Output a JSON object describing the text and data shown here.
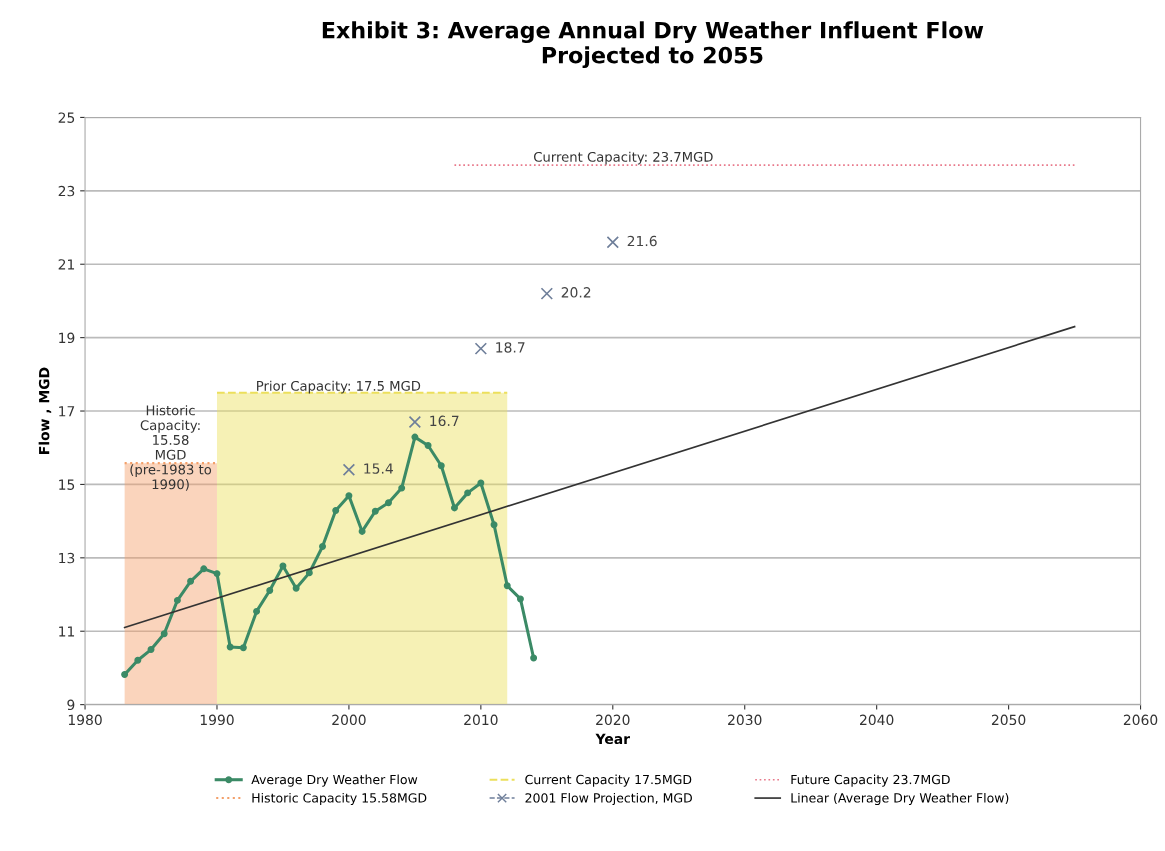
{
  "chart_data": {
    "type": "line",
    "title": "Exhibit 3: Average Annual Dry Weather Influent Flow\nProjected to 2055",
    "xlabel": "Year",
    "ylabel": "Flow , MGD",
    "xlim": [
      1980,
      2060
    ],
    "xticks": [
      1980,
      1990,
      2000,
      2010,
      2020,
      2030,
      2040,
      2050,
      2060
    ],
    "ylim": [
      9,
      25
    ],
    "yticks": [
      9,
      11,
      13,
      15,
      17,
      19,
      21,
      23,
      25
    ],
    "grid": "y",
    "legend": "bottom",
    "series": [
      {
        "name": "Average Dry Weather Flow",
        "color": "#3b8a66",
        "marker": "circle",
        "line_style": "solid",
        "x": [
          1983,
          1984,
          1985,
          1986,
          1987,
          1988,
          1989,
          1990,
          1991,
          1992,
          1993,
          1994,
          1995,
          1996,
          1997,
          1998,
          1999,
          2000,
          2001,
          2002,
          2003,
          2004,
          2005,
          2006,
          2007,
          2008,
          2009,
          2010,
          2011,
          2012,
          2013,
          2014
        ],
        "values": [
          9.82,
          10.21,
          10.5,
          10.93,
          11.84,
          12.36,
          12.7,
          12.57,
          10.57,
          10.55,
          11.54,
          12.11,
          12.78,
          12.17,
          12.59,
          13.31,
          14.29,
          14.69,
          13.72,
          14.27,
          14.5,
          14.9,
          16.29,
          16.06,
          15.51,
          14.36,
          14.77,
          15.04,
          13.9,
          12.24,
          11.88,
          10.27
        ]
      },
      {
        "name": "Current Capacity 17.5MGD",
        "type": "area",
        "color": "#ecdf5c",
        "line_style": "dashed",
        "x": [
          1990,
          2012
        ],
        "values": [
          17.5,
          17.5
        ]
      },
      {
        "name": "Future Capacity 23.7MGD",
        "color": "#e8788a",
        "line_style": "dotted",
        "x": [
          2008,
          2055
        ],
        "values": [
          23.7,
          23.7
        ]
      },
      {
        "name": "Historic Capacity 15.58MGD",
        "type": "area",
        "color": "#f3a06a",
        "line_style": "dotted",
        "x": [
          1983,
          1990
        ],
        "values": [
          15.58,
          15.58
        ]
      },
      {
        "name": "2001 Flow Projection, MGD",
        "type": "scatter",
        "color": "#6f7f9a",
        "marker": "cross",
        "x": [
          2000,
          2005,
          2010,
          2015,
          2020
        ],
        "values": [
          15.4,
          16.7,
          18.7,
          20.2,
          21.6
        ],
        "value_labels": [
          "15.4",
          "16.7",
          "18.7",
          "20.2",
          "21.6"
        ]
      },
      {
        "name": "Linear (Average Dry Weather Flow)",
        "color": "#333333",
        "line_style": "solid",
        "x": [
          1983,
          2055
        ],
        "values": [
          11.1,
          19.3
        ]
      }
    ],
    "annotations": [
      "Current Capacity: 23.7MGD",
      "Prior Capacity: 17.5 MGD",
      "Historic\nCapacity:\n15.58\nMGD\n(pre-1983 to\n1990)"
    ]
  }
}
